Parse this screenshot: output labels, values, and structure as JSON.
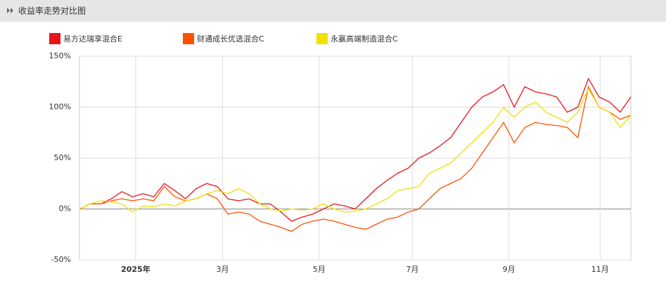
{
  "header": {
    "title": "收益率走势对比图"
  },
  "chart_data": {
    "type": "line",
    "xlim": [
      0,
      52
    ],
    "xticks": [
      {
        "value": 5.3,
        "label": "2025年"
      },
      {
        "value": 13.5,
        "label": "3月"
      },
      {
        "value": 22.6,
        "label": "5月"
      },
      {
        "value": 31.4,
        "label": "7月"
      },
      {
        "value": 40.5,
        "label": "9月"
      },
      {
        "value": 49.1,
        "label": "11月"
      }
    ],
    "ylim": [
      -50,
      150
    ],
    "yticks": [
      {
        "value": -50,
        "label": "-50%"
      },
      {
        "value": 0,
        "label": "0%"
      },
      {
        "value": 50,
        "label": "50%"
      },
      {
        "value": 100,
        "label": "100%"
      },
      {
        "value": 150,
        "label": "150%"
      }
    ],
    "grid": true,
    "series": [
      {
        "name": "易方达瑞享混合E",
        "color": "#e8141b",
        "values": [
          0,
          5,
          5,
          10,
          17,
          12,
          15,
          12,
          25,
          18,
          10,
          20,
          25,
          22,
          10,
          8,
          10,
          5,
          5,
          -3,
          -12,
          -8,
          -5,
          0,
          5,
          3,
          0,
          10,
          20,
          28,
          35,
          40,
          50,
          55,
          62,
          70,
          85,
          100,
          110,
          115,
          122,
          100,
          120,
          115,
          113,
          110,
          95,
          100,
          128,
          110,
          105,
          95,
          110
        ]
      },
      {
        "name": "财通成长优选混合C",
        "color": "#ff5000",
        "values": [
          0,
          5,
          5,
          8,
          10,
          8,
          10,
          8,
          22,
          12,
          8,
          10,
          15,
          10,
          -5,
          -3,
          -5,
          -12,
          -15,
          -18,
          -22,
          -15,
          -12,
          -10,
          -12,
          -15,
          -18,
          -20,
          -15,
          -10,
          -8,
          -3,
          0,
          10,
          20,
          25,
          30,
          40,
          55,
          70,
          85,
          65,
          80,
          85,
          83,
          82,
          80,
          70,
          120,
          100,
          95,
          88,
          92
        ]
      },
      {
        "name": "永嬴高端制造混合C",
        "color": "#f0e000",
        "values": [
          0,
          5,
          8,
          7,
          5,
          -3,
          3,
          2,
          5,
          3,
          8,
          10,
          15,
          18,
          15,
          20,
          15,
          5,
          0,
          -2,
          0,
          -1,
          0,
          5,
          0,
          -3,
          -2,
          0,
          5,
          10,
          18,
          20,
          22,
          35,
          40,
          45,
          55,
          65,
          75,
          85,
          100,
          90,
          100,
          105,
          95,
          90,
          85,
          95,
          118,
          100,
          95,
          80,
          92
        ]
      }
    ]
  }
}
